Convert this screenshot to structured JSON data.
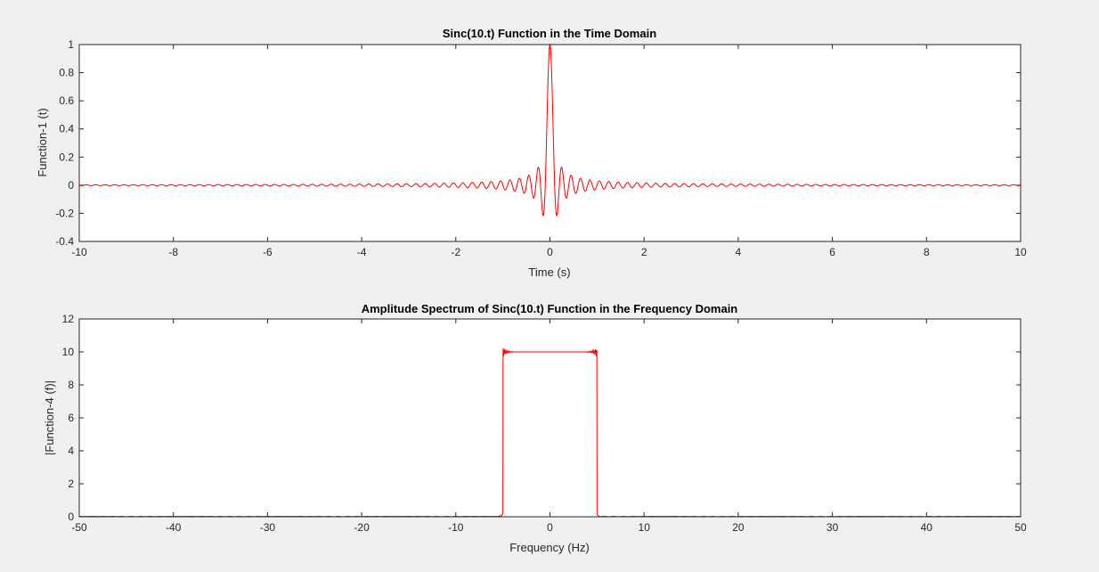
{
  "window": {
    "background": "#f0f0f0"
  },
  "chart_data": [
    {
      "type": "line",
      "title": "Sinc(10.t) Function in the Time Domain",
      "xlabel": "Time (s)",
      "ylabel": "Function-1 (t)",
      "xlim": [
        -10,
        10
      ],
      "ylim": [
        -0.4,
        1
      ],
      "xticks": [
        -10,
        -8,
        -6,
        -4,
        -2,
        0,
        2,
        4,
        6,
        8,
        10
      ],
      "yticks": [
        -0.4,
        -0.2,
        0,
        0.2,
        0.4,
        0.6,
        0.8,
        1
      ],
      "xtick_labels": [
        "-10",
        "-8",
        "-6",
        "-4",
        "-2",
        "0",
        "2",
        "4",
        "6",
        "8",
        "10"
      ],
      "ytick_labels": [
        "-0.4",
        "-0.2",
        "0",
        "0.2",
        "0.4",
        "0.6",
        "0.8",
        "1"
      ],
      "grid": false,
      "line_color": "#ff0000",
      "series": [
        {
          "function": "sin(pi*10*t)/(pi*10*t)",
          "x_range": [
            -10,
            10
          ],
          "sample_step": 0.005,
          "peak": {
            "x": 0,
            "y": 1
          },
          "min_value": -0.217
        }
      ]
    },
    {
      "type": "line",
      "title": "Amplitude Spectrum of Sinc(10.t) Function in the Frequency Domain",
      "xlabel": "Frequency (Hz)",
      "ylabel": "|Function-4 (f)|",
      "xlim": [
        -50,
        50
      ],
      "ylim": [
        0,
        12
      ],
      "xticks": [
        -50,
        -40,
        -30,
        -20,
        -10,
        0,
        10,
        20,
        30,
        40,
        50
      ],
      "yticks": [
        0,
        2,
        4,
        6,
        8,
        10,
        12
      ],
      "xtick_labels": [
        "-50",
        "-40",
        "-30",
        "-20",
        "-10",
        "0",
        "10",
        "20",
        "30",
        "40",
        "50"
      ],
      "ytick_labels": [
        "0",
        "2",
        "4",
        "6",
        "8",
        "10",
        "12"
      ],
      "grid": false,
      "line_color": "#ff0000",
      "series": [
        {
          "shape": "rectangular",
          "x": [
            -50,
            -5,
            -5,
            5,
            5,
            50
          ],
          "y": [
            0,
            0,
            10,
            10,
            0,
            0
          ],
          "edge_ripple_max": 10.35
        }
      ]
    }
  ]
}
